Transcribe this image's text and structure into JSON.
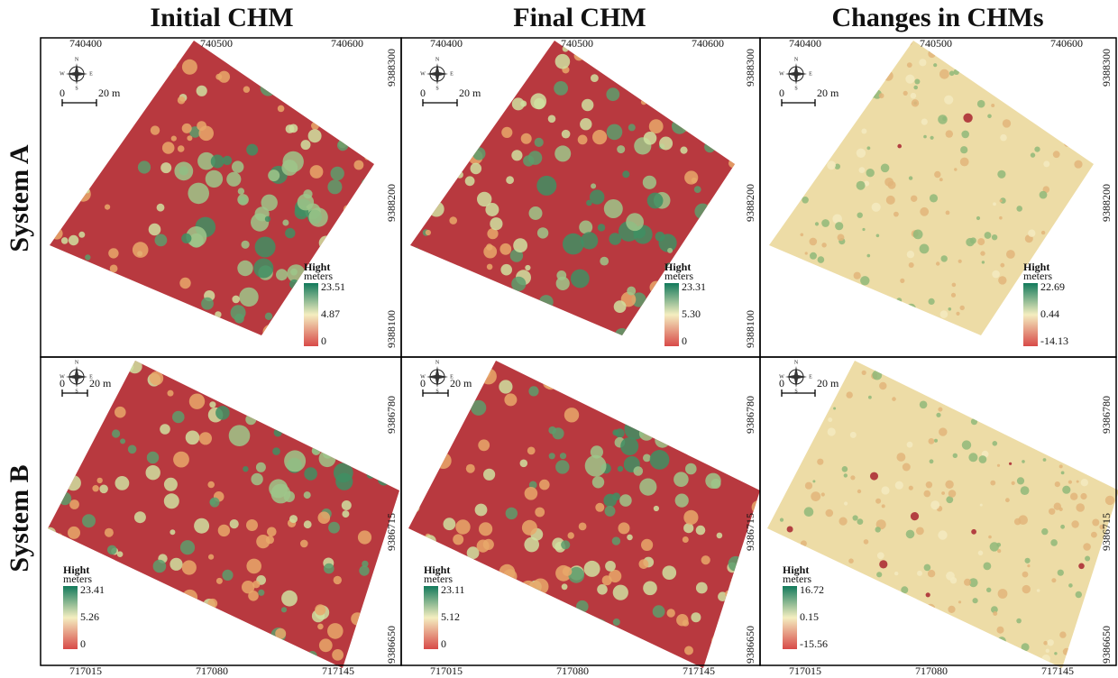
{
  "columns": [
    "Initial CHM",
    "Final CHM",
    "Changes in CHMs"
  ],
  "rows": [
    "System A",
    "System B"
  ],
  "panels": [
    {
      "legend": {
        "title": "Hight",
        "unit": "meters",
        "max": "23.51",
        "mid": "4.87",
        "min": "0"
      },
      "scale": {
        "start": "0",
        "end": "20 m"
      },
      "compass": [
        "N",
        "S",
        "E",
        "W"
      ],
      "x_ticks": [
        "740400",
        "740500",
        "740600"
      ],
      "y_ticks": [
        "9388300",
        "9388200",
        "9388100"
      ]
    },
    {
      "legend": {
        "title": "Hight",
        "unit": "meters",
        "max": "23.31",
        "mid": "5.30",
        "min": "0"
      },
      "scale": {
        "start": "0",
        "end": "20 m"
      },
      "compass": [
        "N",
        "S",
        "E",
        "W"
      ],
      "x_ticks": [
        "740400",
        "740500",
        "740600"
      ],
      "y_ticks": [
        "9388300",
        "9388200",
        "9388100"
      ]
    },
    {
      "legend": {
        "title": "Hight",
        "unit": "meters",
        "max": "22.69",
        "mid": "0.44",
        "min": "-14.13"
      },
      "scale": {
        "start": "0",
        "end": "20 m"
      },
      "compass": [
        "N",
        "S",
        "E",
        "W"
      ],
      "x_ticks": [
        "740400",
        "740500",
        "740600"
      ],
      "y_ticks": [
        "9388300",
        "9388200"
      ]
    },
    {
      "legend": {
        "title": "Hight",
        "unit": "meters",
        "max": "23.41",
        "mid": "5.26",
        "min": "0"
      },
      "scale": {
        "start": "0",
        "end": "20 m"
      },
      "compass": [
        "N",
        "S",
        "E",
        "W"
      ],
      "x_ticks": [
        "717015",
        "717080",
        "717145"
      ],
      "y_ticks": [
        "9386780",
        "9386715",
        "9386650"
      ]
    },
    {
      "legend": {
        "title": "Hight",
        "unit": "meters",
        "max": "23.11",
        "mid": "5.12",
        "min": "0"
      },
      "scale": {
        "start": "0",
        "end": "20 m"
      },
      "compass": [
        "N",
        "S",
        "E",
        "W"
      ],
      "x_ticks": [
        "717015",
        "717080",
        "717145"
      ],
      "y_ticks": [
        "9386780",
        "9386715",
        "9386650"
      ]
    },
    {
      "legend": {
        "title": "Hight",
        "unit": "meters",
        "max": "16.72",
        "mid": "0.15",
        "min": "-15.56"
      },
      "scale": {
        "start": "0",
        "end": "20 m"
      },
      "compass": [
        "N",
        "S",
        "E",
        "W"
      ],
      "x_ticks": [
        "717015",
        "717080",
        "717145"
      ],
      "y_ticks": [
        "9386780",
        "9386715",
        "9386650"
      ]
    }
  ]
}
